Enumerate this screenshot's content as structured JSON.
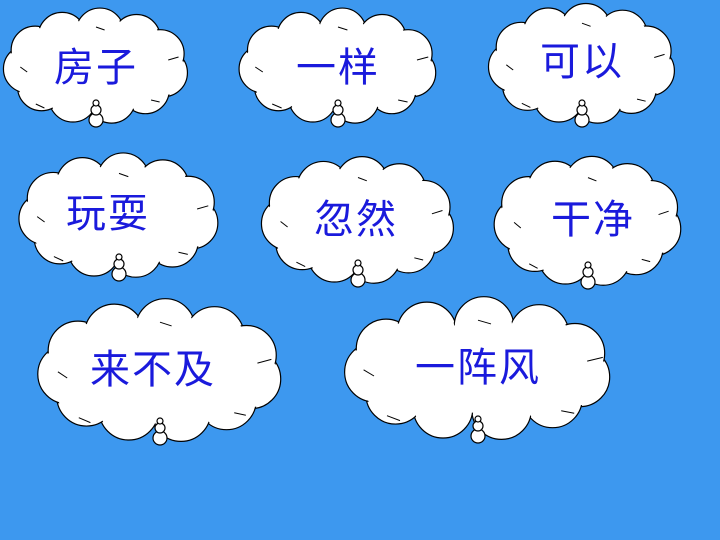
{
  "slide": {
    "background_color": "#3d98ef",
    "text_color": "#1a1adc",
    "cloud_fill": "#ffffff",
    "cloud_stroke": "#000000"
  },
  "words": [
    {
      "text": "房子"
    },
    {
      "text": "一样"
    },
    {
      "text": "可以"
    },
    {
      "text": "玩耍"
    },
    {
      "text": "忽然"
    },
    {
      "text": "干净"
    },
    {
      "text": "来不及"
    },
    {
      "text": "一阵风"
    }
  ]
}
